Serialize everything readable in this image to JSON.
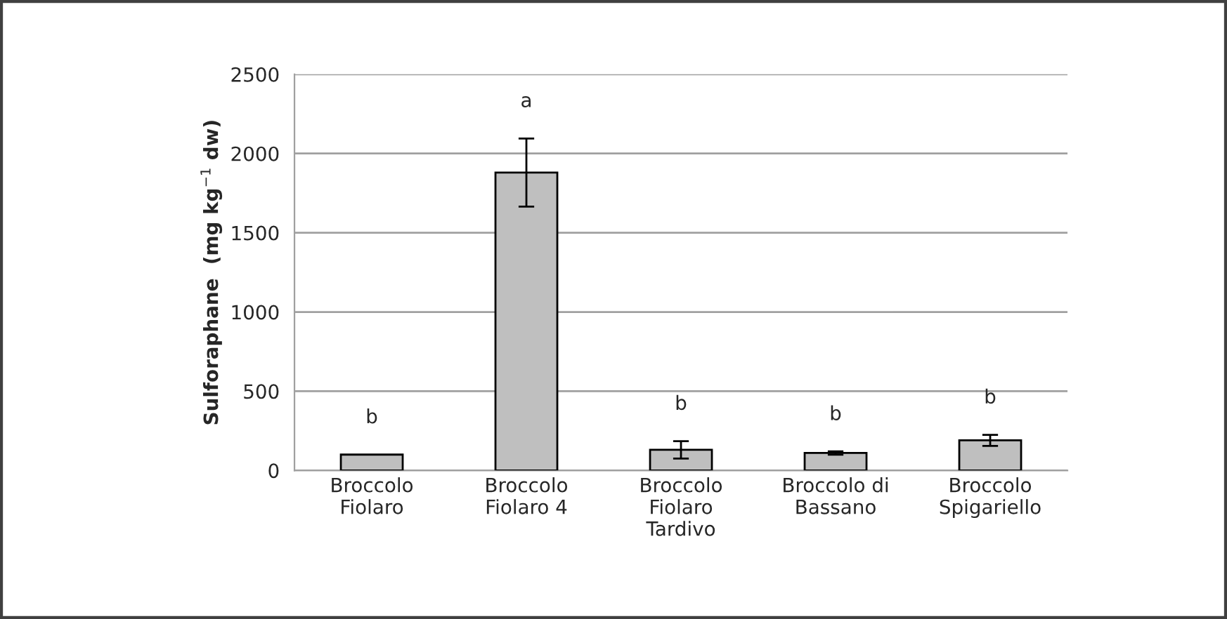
{
  "chart_data": {
    "type": "bar",
    "ylabel": "Sulforaphane  (mg kg$^{−1}$ dw)",
    "categories": [
      "Broccolo\nFiolaro",
      "Broccolo\nFiolaro 4",
      "Broccolo\nFiolaro\nTardivo",
      "Broccolo di\nBassano",
      "Broccolo\nSpigariello"
    ],
    "values": [
      100,
      1880,
      130,
      110,
      190
    ],
    "errors": [
      null,
      215,
      55,
      10,
      35
    ],
    "color": "#bfbfbf",
    "ylim": [
      0,
      2500
    ],
    "yticks": [
      0,
      500,
      1000,
      1500,
      2000,
      2500
    ],
    "grid": "y",
    "annotations": [
      "b",
      "a",
      "b",
      "b",
      "b"
    ]
  }
}
